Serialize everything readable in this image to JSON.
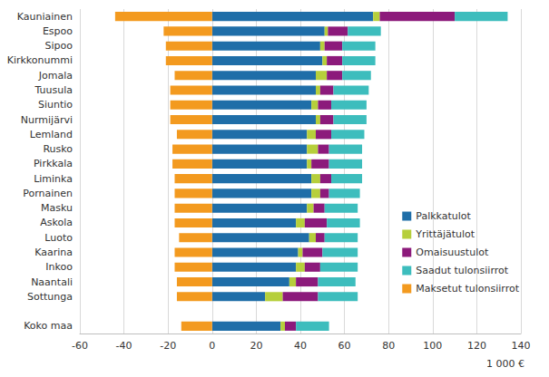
{
  "chart_data": {
    "type": "bar",
    "orientation": "horizontal",
    "stacked": true,
    "grid": true,
    "legend": "right",
    "x_label": "1 000 €",
    "xlim": [
      -60,
      140
    ],
    "xticks": [
      -60,
      -40,
      -20,
      0,
      20,
      40,
      60,
      80,
      100,
      120,
      140
    ],
    "categories": [
      "Kauniainen",
      "Espoo",
      "Sipoo",
      "Kirkkonummi",
      "Jomala",
      "Tuusula",
      "Siuntio",
      "Nurmijärvi",
      "Lemland",
      "Rusko",
      "Pirkkala",
      "Liminka",
      "Pornainen",
      "Masku",
      "Askola",
      "Luoto",
      "Kaarina",
      "Inkoo",
      "Naantali",
      "Sottunga",
      null,
      "Koko maa"
    ],
    "series": [
      {
        "name": "Palkkatulot",
        "color": "#1f6ea8",
        "values": [
          73,
          51,
          49,
          50,
          47,
          47,
          45,
          47,
          43,
          43,
          43,
          45,
          45,
          43,
          38,
          44,
          39,
          38,
          35,
          24,
          null,
          31
        ]
      },
      {
        "name": "Yrittäjätulot",
        "color": "#b6cf3b",
        "values": [
          3,
          1.5,
          2,
          2,
          5,
          2,
          3,
          2,
          4,
          5,
          2,
          4,
          4,
          3,
          4,
          3,
          2,
          4,
          3,
          8,
          null,
          2
        ]
      },
      {
        "name": "Omaisuustulot",
        "color": "#8c1a7b",
        "values": [
          34,
          9,
          8,
          7,
          7,
          6,
          6,
          6,
          7,
          5,
          8,
          5,
          4,
          5,
          10,
          4,
          9,
          7,
          10,
          16,
          null,
          5
        ]
      },
      {
        "name": "Saadut tulonsiirrot",
        "color": "#3dbdbd",
        "values": [
          24,
          15,
          15,
          15,
          13,
          16,
          16,
          15,
          15,
          15,
          15,
          14,
          14,
          15,
          15,
          15,
          16,
          17,
          17,
          18,
          null,
          15
        ]
      },
      {
        "name": "Maksetut tulonsiirrot",
        "color": "#f39a1f",
        "values": [
          -44,
          -22,
          -21,
          -21,
          -17,
          -19,
          -19,
          -19,
          -16,
          -18,
          -18,
          -17,
          -17,
          -17,
          -17,
          -15,
          -17,
          -17,
          -16,
          -16,
          null,
          -14
        ]
      }
    ]
  }
}
